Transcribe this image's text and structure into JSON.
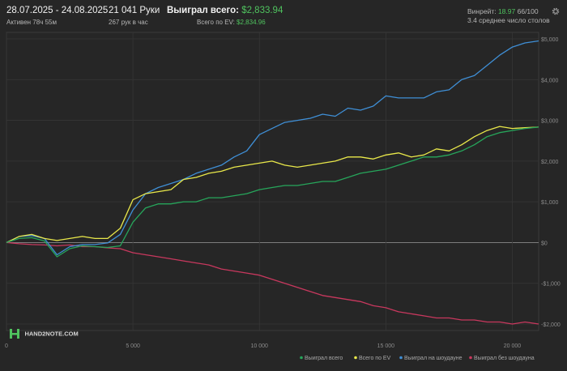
{
  "header": {
    "date_range": "28.07.2025 - 24.08.2025",
    "active": "Активен 78ч 55м",
    "hands": "21 041 Руки",
    "hands_per_hour": "267 рук в час",
    "won_total_label": "Выиграл всего:",
    "won_total_value": "$2,833.94",
    "ev_total_label": "Всего по EV:",
    "ev_total_value": "$2,834.96",
    "winrate_label": "Винрейт:",
    "winrate_value": "18.97",
    "winrate_rest": "66/100",
    "avg_tables": "3.4 среднее число столов"
  },
  "logo": {
    "text": "HAND2NOTE.COM"
  },
  "colors": {
    "background": "#262626",
    "won": "#26a65b",
    "ev": "#e9e84a",
    "showdown": "#3f8fd6",
    "nonshowdown": "#c8385e",
    "green_text": "#4fc25e"
  },
  "chart_data": {
    "type": "line",
    "xlim": [
      0,
      21041
    ],
    "ylim": [
      -2000,
      5000
    ],
    "x_ticks": [
      0,
      5000,
      10000,
      15000,
      20000
    ],
    "x_tick_labels": [
      "0",
      "5 000",
      "10 000",
      "15 000",
      "20 000"
    ],
    "y_ticks": [
      -2000,
      -1000,
      0,
      1000,
      2000,
      3000,
      4000,
      5000
    ],
    "y_tick_labels": [
      "-$2,000",
      "-$1,000",
      "$0",
      "$1,000",
      "$2,000",
      "$3,000",
      "$4,000",
      "$5,000"
    ],
    "grid": true,
    "legend_position": "bottom-right",
    "series": [
      {
        "name": "Выиграл всего",
        "color": "#26a65b",
        "x": [
          0,
          500,
          1000,
          1500,
          2000,
          2500,
          3000,
          3500,
          4000,
          4500,
          5000,
          5500,
          6000,
          6500,
          7000,
          7500,
          8000,
          8500,
          9000,
          9500,
          10000,
          10500,
          11000,
          11500,
          12000,
          12500,
          13000,
          13500,
          14000,
          14500,
          15000,
          15500,
          16000,
          16500,
          17000,
          17500,
          18000,
          18500,
          19000,
          19500,
          20000,
          20500,
          21041
        ],
        "y": [
          0,
          100,
          120,
          40,
          -350,
          -150,
          -80,
          -100,
          -120,
          -80,
          500,
          850,
          950,
          950,
          1000,
          1000,
          1100,
          1100,
          1150,
          1200,
          1300,
          1350,
          1400,
          1400,
          1450,
          1500,
          1500,
          1600,
          1700,
          1750,
          1800,
          1900,
          2000,
          2100,
          2100,
          2150,
          2250,
          2400,
          2600,
          2700,
          2750,
          2800,
          2834
        ]
      },
      {
        "name": "Всего по EV",
        "color": "#e9e84a",
        "x": [
          0,
          500,
          1000,
          1500,
          2000,
          2500,
          3000,
          3500,
          4000,
          4500,
          5000,
          5500,
          6000,
          6500,
          7000,
          7500,
          8000,
          8500,
          9000,
          9500,
          10000,
          10500,
          11000,
          11500,
          12000,
          12500,
          13000,
          13500,
          14000,
          14500,
          15000,
          15500,
          16000,
          16500,
          17000,
          17500,
          18000,
          18500,
          19000,
          19500,
          20000,
          20500,
          21041
        ],
        "y": [
          0,
          150,
          200,
          100,
          50,
          100,
          150,
          100,
          100,
          350,
          1050,
          1200,
          1250,
          1300,
          1550,
          1600,
          1700,
          1750,
          1850,
          1900,
          1950,
          2000,
          1900,
          1850,
          1900,
          1950,
          2000,
          2100,
          2100,
          2050,
          2150,
          2200,
          2100,
          2150,
          2300,
          2250,
          2400,
          2600,
          2750,
          2850,
          2800,
          2820,
          2835
        ]
      },
      {
        "name": "Выиграл на шоудауне",
        "color": "#3f8fd6",
        "x": [
          0,
          500,
          1000,
          1500,
          2000,
          2500,
          3000,
          3500,
          4000,
          4500,
          5000,
          5500,
          6000,
          6500,
          7000,
          7500,
          8000,
          8500,
          9000,
          9500,
          10000,
          10500,
          11000,
          11500,
          12000,
          12500,
          13000,
          13500,
          14000,
          14500,
          15000,
          15500,
          16000,
          16500,
          17000,
          17500,
          18000,
          18500,
          19000,
          19500,
          20000,
          20500,
          21041
        ],
        "y": [
          0,
          150,
          170,
          100,
          -300,
          -100,
          -50,
          -50,
          -10,
          200,
          800,
          1200,
          1350,
          1450,
          1550,
          1700,
          1800,
          1900,
          2100,
          2250,
          2650,
          2800,
          2950,
          3000,
          3050,
          3150,
          3100,
          3300,
          3250,
          3350,
          3600,
          3550,
          3550,
          3550,
          3700,
          3750,
          4000,
          4100,
          4350,
          4600,
          4800,
          4900,
          4950
        ]
      },
      {
        "name": "Выиграл без шоудауна",
        "color": "#c8385e",
        "x": [
          0,
          500,
          1000,
          1500,
          2000,
          2500,
          3000,
          3500,
          4000,
          4500,
          5000,
          5500,
          6000,
          6500,
          7000,
          7500,
          8000,
          8500,
          9000,
          9500,
          10000,
          10500,
          11000,
          11500,
          12000,
          12500,
          13000,
          13500,
          14000,
          14500,
          15000,
          15500,
          16000,
          16500,
          17000,
          17500,
          18000,
          18500,
          19000,
          19500,
          20000,
          20500,
          21041
        ],
        "y": [
          0,
          -30,
          -50,
          -60,
          -80,
          -60,
          -100,
          -100,
          -130,
          -150,
          -250,
          -300,
          -350,
          -400,
          -450,
          -500,
          -550,
          -650,
          -700,
          -750,
          -800,
          -900,
          -1000,
          -1100,
          -1200,
          -1300,
          -1350,
          -1400,
          -1450,
          -1550,
          -1600,
          -1700,
          -1750,
          -1800,
          -1850,
          -1850,
          -1900,
          -1900,
          -1950,
          -1950,
          -2000,
          -1950,
          -2000
        ]
      }
    ]
  }
}
